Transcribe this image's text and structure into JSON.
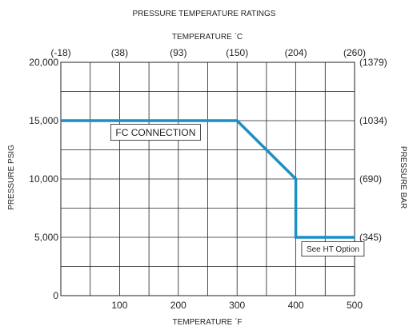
{
  "chart_data": {
    "type": "line",
    "title": "PRESSURE TEMPERATURE RATINGS",
    "xlabel": "TEMPERATURE ˊF",
    "ylabel": "PRESSURE PSIG",
    "x2label": "TEMPERATURE ˊC",
    "y2label": "PRESSURE BAR",
    "xlim": [
      0,
      500
    ],
    "ylim": [
      0,
      20000
    ],
    "grid": true,
    "x_ticks": [
      {
        "value": 100,
        "label": "100"
      },
      {
        "value": 200,
        "label": "200"
      },
      {
        "value": 300,
        "label": "300"
      },
      {
        "value": 400,
        "label": "400"
      },
      {
        "value": 500,
        "label": "500"
      }
    ],
    "y_ticks": [
      {
        "value": 0,
        "label": "0"
      },
      {
        "value": 5000,
        "label": "5,000"
      },
      {
        "value": 10000,
        "label": "10,000"
      },
      {
        "value": 15000,
        "label": "15,000"
      },
      {
        "value": 20000,
        "label": "20,000"
      }
    ],
    "x2_ticks": [
      {
        "value": 0,
        "label": "(-18)"
      },
      {
        "value": 100,
        "label": "(38)"
      },
      {
        "value": 200,
        "label": "(93)"
      },
      {
        "value": 300,
        "label": "(150)"
      },
      {
        "value": 400,
        "label": "(204)"
      },
      {
        "value": 500,
        "label": "(260)"
      }
    ],
    "y2_ticks": [
      {
        "value": 20000,
        "label": "(1379)"
      },
      {
        "value": 15000,
        "label": "(1034)"
      },
      {
        "value": 10000,
        "label": "(690)"
      },
      {
        "value": 5000,
        "label": "(345)"
      }
    ],
    "series": [
      {
        "color": "#1b8fc6",
        "x": [
          0,
          300,
          400,
          400,
          500
        ],
        "y": [
          15000,
          15000,
          10000,
          5000,
          5000
        ]
      }
    ],
    "annotations": [
      {
        "text": "FC CONNECTION",
        "x": 85,
        "y": 14000
      },
      {
        "text": "See HT Option",
        "x": 410,
        "y": 4000
      }
    ]
  }
}
